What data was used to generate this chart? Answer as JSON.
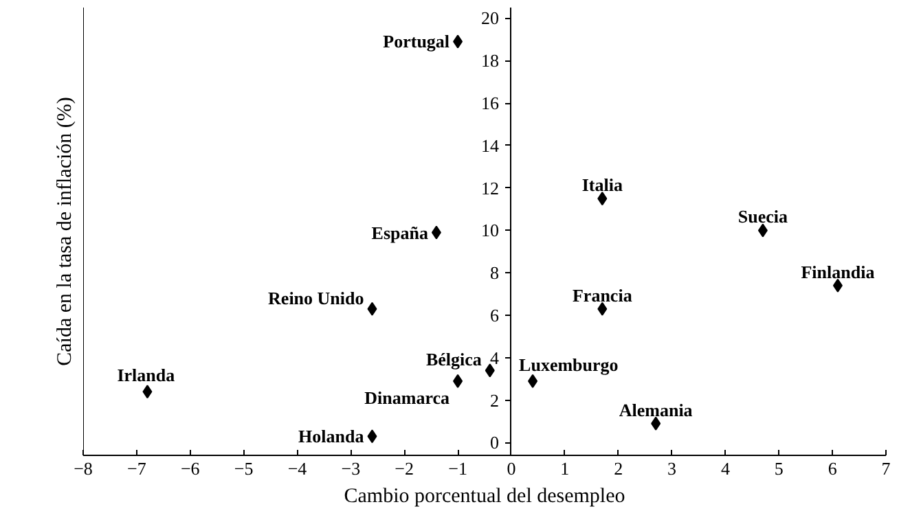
{
  "chart_data": {
    "type": "scatter",
    "xlabel": "Cambio porcentual del desempleo",
    "ylabel": "Caída en la tasa de inflación (%)",
    "x": [
      -1.0,
      -1.4,
      -2.6,
      -6.8,
      -0.4,
      -1.0,
      -2.6,
      0.4,
      1.7,
      1.7,
      2.7,
      4.7,
      6.1
    ],
    "series": [
      {
        "color": "#000000",
        "values": [
          18.9,
          9.9,
          6.3,
          2.4,
          3.4,
          2.9,
          0.3,
          2.9,
          11.5,
          6.3,
          0.9,
          10.0,
          7.4
        ]
      }
    ],
    "annotations": [
      {
        "text": "Portugal",
        "x": -1.0,
        "y": 18.9
      },
      {
        "text": "España",
        "x": -1.4,
        "y": 9.9
      },
      {
        "text": "Reino Unido",
        "x": -2.6,
        "y": 6.3
      },
      {
        "text": "Irlanda",
        "x": -6.8,
        "y": 2.4
      },
      {
        "text": "Bélgica",
        "x": -0.4,
        "y": 3.4
      },
      {
        "text": "Dinamarca",
        "x": -1.0,
        "y": 2.9
      },
      {
        "text": "Holanda",
        "x": -2.6,
        "y": 0.3
      },
      {
        "text": "Luxemburgo",
        "x": 0.4,
        "y": 2.9
      },
      {
        "text": "Italia",
        "x": 1.7,
        "y": 11.5
      },
      {
        "text": "Francia",
        "x": 1.7,
        "y": 6.3
      },
      {
        "text": "Alemania",
        "x": 2.7,
        "y": 0.9
      },
      {
        "text": "Suecia",
        "x": 4.7,
        "y": 10.0
      },
      {
        "text": "Finlandia",
        "x": 6.1,
        "y": 7.4
      }
    ],
    "xlim": [
      -8,
      7
    ],
    "ylim": [
      -0.6,
      20.5
    ],
    "xticks": [
      -8,
      -7,
      -6,
      -5,
      -4,
      -3,
      -2,
      -1,
      0,
      1,
      2,
      3,
      4,
      5,
      6,
      7
    ],
    "yticks": [
      0,
      2,
      4,
      6,
      8,
      10,
      12,
      14,
      16,
      18,
      20
    ],
    "marker": "diamond",
    "grid": false
  }
}
